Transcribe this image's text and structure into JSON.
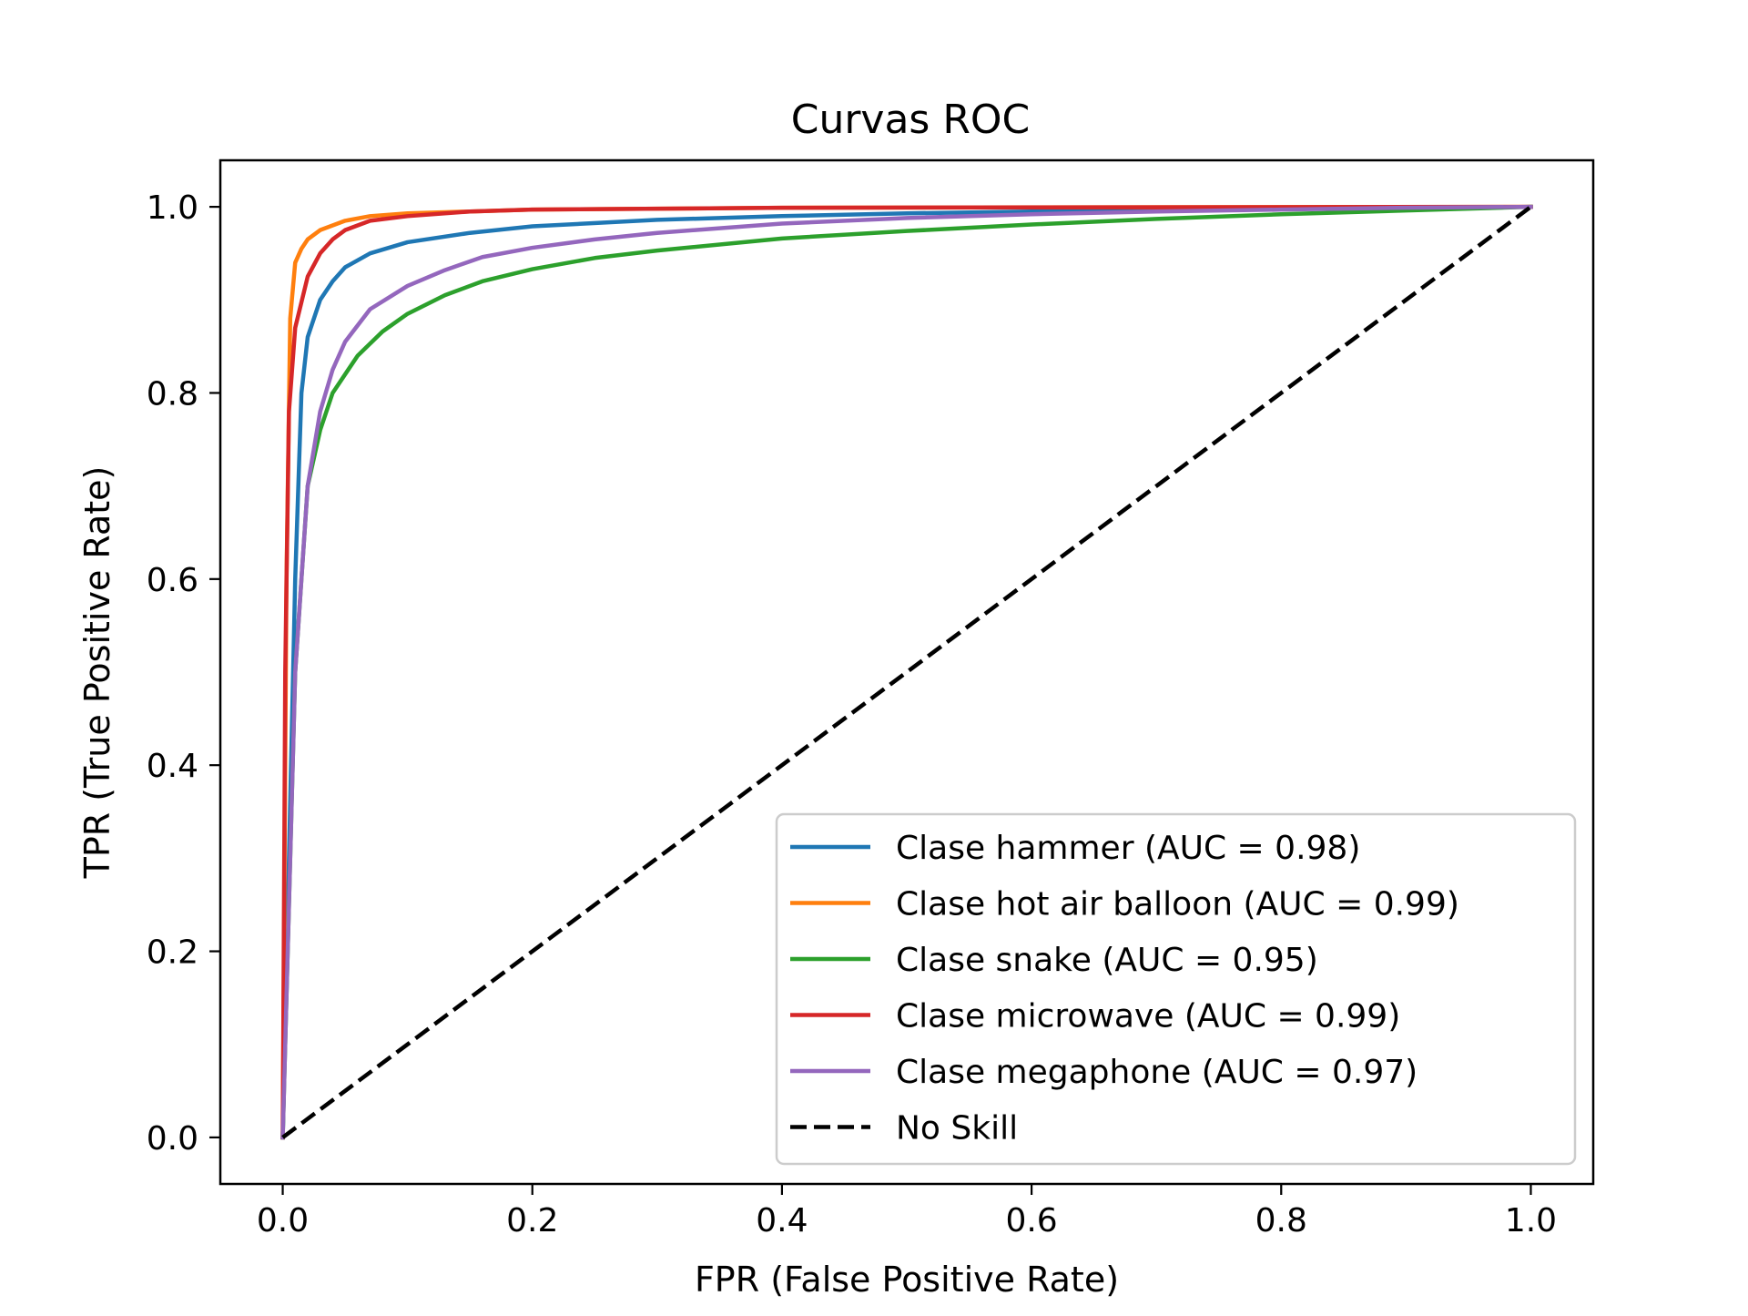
{
  "chart_data": {
    "type": "line",
    "title": "Curvas ROC",
    "xlabel": "FPR (False Positive Rate)",
    "ylabel": "TPR (True Positive Rate)",
    "xlim": [
      -0.05,
      1.05
    ],
    "ylim": [
      -0.05,
      1.05
    ],
    "x_ticks": [
      "0.0",
      "0.2",
      "0.4",
      "0.6",
      "0.8",
      "1.0"
    ],
    "y_ticks": [
      "0.0",
      "0.2",
      "0.4",
      "0.6",
      "0.8",
      "1.0"
    ],
    "x_tick_values": [
      0,
      0.2,
      0.4,
      0.6,
      0.8,
      1.0
    ],
    "y_tick_values": [
      0,
      0.2,
      0.4,
      0.6,
      0.8,
      1.0
    ],
    "grid": false,
    "legend_position": "lower-right",
    "series": [
      {
        "name": "Clase hammer (AUC = 0.98)",
        "color": "#1f77b4",
        "style": "solid",
        "points": [
          [
            0,
            0
          ],
          [
            0.005,
            0.3
          ],
          [
            0.01,
            0.6
          ],
          [
            0.015,
            0.8
          ],
          [
            0.02,
            0.86
          ],
          [
            0.03,
            0.9
          ],
          [
            0.04,
            0.92
          ],
          [
            0.05,
            0.935
          ],
          [
            0.07,
            0.95
          ],
          [
            0.1,
            0.962
          ],
          [
            0.15,
            0.972
          ],
          [
            0.2,
            0.979
          ],
          [
            0.3,
            0.986
          ],
          [
            0.4,
            0.99
          ],
          [
            0.5,
            0.993
          ],
          [
            0.6,
            0.995
          ],
          [
            0.7,
            0.997
          ],
          [
            0.8,
            0.998
          ],
          [
            0.9,
            0.999
          ],
          [
            1.0,
            1.0
          ]
        ]
      },
      {
        "name": "Clase hot air balloon (AUC = 0.99)",
        "color": "#ff7f0e",
        "style": "solid",
        "points": [
          [
            0,
            0
          ],
          [
            0.003,
            0.6
          ],
          [
            0.006,
            0.88
          ],
          [
            0.01,
            0.94
          ],
          [
            0.015,
            0.955
          ],
          [
            0.02,
            0.965
          ],
          [
            0.03,
            0.975
          ],
          [
            0.05,
            0.985
          ],
          [
            0.07,
            0.99
          ],
          [
            0.1,
            0.993
          ],
          [
            0.2,
            0.997
          ],
          [
            0.4,
            0.999
          ],
          [
            0.6,
            0.9995
          ],
          [
            1.0,
            1.0
          ]
        ]
      },
      {
        "name": "Clase snake (AUC = 0.95)",
        "color": "#2ca02c",
        "style": "solid",
        "points": [
          [
            0,
            0
          ],
          [
            0.005,
            0.25
          ],
          [
            0.01,
            0.5
          ],
          [
            0.02,
            0.7
          ],
          [
            0.03,
            0.76
          ],
          [
            0.04,
            0.8
          ],
          [
            0.06,
            0.84
          ],
          [
            0.08,
            0.866
          ],
          [
            0.1,
            0.885
          ],
          [
            0.13,
            0.905
          ],
          [
            0.16,
            0.92
          ],
          [
            0.2,
            0.933
          ],
          [
            0.25,
            0.945
          ],
          [
            0.3,
            0.953
          ],
          [
            0.4,
            0.966
          ],
          [
            0.5,
            0.974
          ],
          [
            0.6,
            0.981
          ],
          [
            0.7,
            0.987
          ],
          [
            0.8,
            0.992
          ],
          [
            0.9,
            0.996
          ],
          [
            1.0,
            1.0
          ]
        ]
      },
      {
        "name": "Clase microwave (AUC = 0.99)",
        "color": "#d62728",
        "style": "solid",
        "points": [
          [
            0,
            0
          ],
          [
            0.002,
            0.5
          ],
          [
            0.005,
            0.78
          ],
          [
            0.01,
            0.87
          ],
          [
            0.02,
            0.925
          ],
          [
            0.03,
            0.95
          ],
          [
            0.04,
            0.965
          ],
          [
            0.05,
            0.975
          ],
          [
            0.07,
            0.985
          ],
          [
            0.1,
            0.99
          ],
          [
            0.15,
            0.995
          ],
          [
            0.2,
            0.997
          ],
          [
            0.4,
            0.999
          ],
          [
            1.0,
            1.0
          ]
        ]
      },
      {
        "name": "Clase megaphone (AUC = 0.97)",
        "color": "#9467bd",
        "style": "solid",
        "points": [
          [
            0,
            0
          ],
          [
            0.005,
            0.25
          ],
          [
            0.01,
            0.5
          ],
          [
            0.02,
            0.7
          ],
          [
            0.03,
            0.78
          ],
          [
            0.04,
            0.825
          ],
          [
            0.05,
            0.855
          ],
          [
            0.07,
            0.89
          ],
          [
            0.1,
            0.915
          ],
          [
            0.13,
            0.932
          ],
          [
            0.16,
            0.946
          ],
          [
            0.2,
            0.956
          ],
          [
            0.25,
            0.965
          ],
          [
            0.3,
            0.972
          ],
          [
            0.4,
            0.982
          ],
          [
            0.5,
            0.988
          ],
          [
            0.6,
            0.992
          ],
          [
            0.7,
            0.995
          ],
          [
            0.8,
            0.997
          ],
          [
            0.9,
            0.999
          ],
          [
            1.0,
            1.0
          ]
        ]
      },
      {
        "name": "No Skill",
        "color": "#000000",
        "style": "dashed",
        "points": [
          [
            0,
            0
          ],
          [
            1.0,
            1.0
          ]
        ]
      }
    ]
  }
}
